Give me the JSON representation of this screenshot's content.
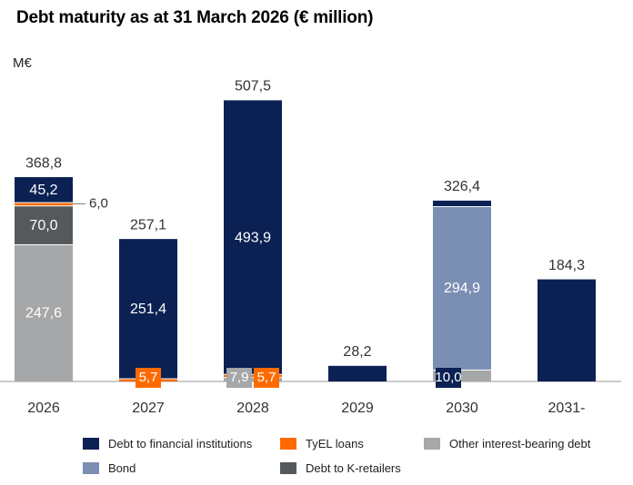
{
  "chart_data": {
    "type": "bar",
    "stacked": true,
    "title": "Debt maturity as at 31 March 2026 (€ million)",
    "ylabel": "M€",
    "categories": [
      "2026",
      "2027",
      "2028",
      "2029",
      "2030",
      "2031-"
    ],
    "series": [
      {
        "name": "Other interest-bearing debt",
        "color": "#a5a7a9",
        "values": [
          247.6,
          0,
          7.9,
          0,
          21.5,
          0
        ],
        "labels": [
          "247,6",
          "",
          "7,9",
          "",
          "21,5",
          ""
        ]
      },
      {
        "name": "Bond",
        "color": "#7b8eb3",
        "values": [
          0,
          0,
          0,
          0,
          294.9,
          0
        ],
        "labels": [
          "",
          "",
          "",
          "",
          "294,9",
          ""
        ]
      },
      {
        "name": "Debt to K-retailers",
        "color": "#56595c",
        "values": [
          70.0,
          0,
          0,
          0,
          0,
          0
        ],
        "labels": [
          "70,0",
          "",
          "",
          "",
          "",
          ""
        ]
      },
      {
        "name": "TyEL loans",
        "color": "#ff6a00",
        "values": [
          6.0,
          5.7,
          5.7,
          0,
          0,
          0
        ],
        "labels": [
          "6,0",
          "5,7",
          "5,7",
          "",
          "",
          ""
        ]
      },
      {
        "name": "Debt to financial institutions",
        "color": "#0b2153",
        "values": [
          45.2,
          251.4,
          493.9,
          28.2,
          10.0,
          184.3
        ],
        "labels": [
          "45,2",
          "251,4",
          "493,9",
          "",
          "10,0",
          ""
        ]
      }
    ],
    "totals": [
      "368,8",
      "257,1",
      "507,5",
      "28,2",
      "326,4",
      "184,3"
    ],
    "legend": [
      "Debt to financial institutions",
      "TyEL loans",
      "Other interest-bearing debt",
      "Bond",
      "Debt to K-retailers"
    ],
    "legend_position": "bottom"
  }
}
